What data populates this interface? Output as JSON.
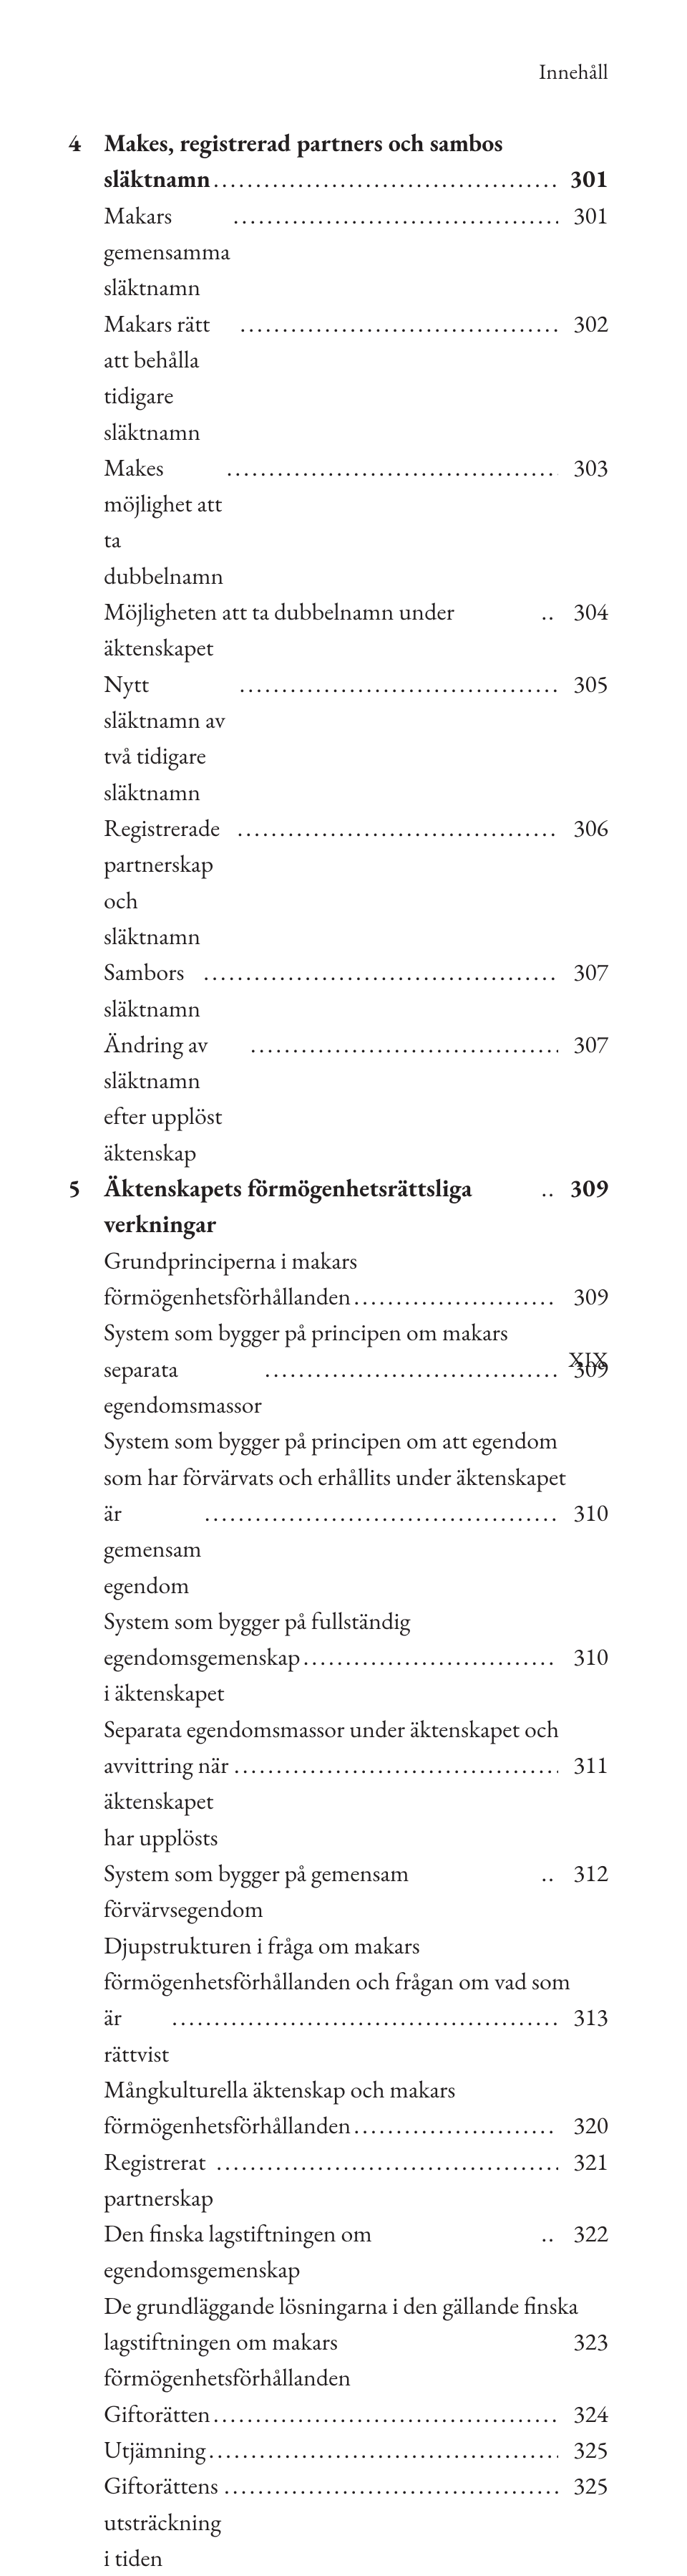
{
  "running_head": "Innehåll",
  "folio": "XIX",
  "entries": [
    {
      "chapter": "4",
      "bold": true,
      "lines": [
        "Makes, registrerad partners och sambos",
        "släktnamn"
      ],
      "page": "301"
    },
    {
      "lines": [
        "Makars gemensamma släktnamn"
      ],
      "page": "301"
    },
    {
      "lines": [
        "Makars rätt att behålla tidigare släktnamn"
      ],
      "page": "302"
    },
    {
      "lines": [
        "Makes möjlighet att ta dubbelnamn"
      ],
      "page": "303"
    },
    {
      "lines": [
        "Möjligheten att ta dubbelnamn under äktenskapet"
      ],
      "leader": "short",
      "page": "304"
    },
    {
      "lines": [
        "Nytt släktnamn av två tidigare släktnamn"
      ],
      "page": "305"
    },
    {
      "lines": [
        "Registrerade partnerskap och släktnamn"
      ],
      "page": "306"
    },
    {
      "lines": [
        "Sambors släktnamn"
      ],
      "page": "307"
    },
    {
      "lines": [
        "Ändring av släktnamn efter upplöst äktenskap"
      ],
      "page": "307"
    },
    {
      "chapter": "5",
      "bold": true,
      "lines": [
        "Äktenskapets förmögenhetsrättsliga verkningar"
      ],
      "leader": "short",
      "page": "309"
    },
    {
      "lines": [
        "Grundprinciperna i makars",
        "förmögenhetsförhållanden"
      ],
      "page": "309"
    },
    {
      "lines": [
        "System som bygger på principen om makars",
        "separata egendomsmassor"
      ],
      "page": "309"
    },
    {
      "lines": [
        "System som bygger på principen om att egendom",
        "som har förvärvats och erhållits under äktenskapet",
        "är gemensam egendom"
      ],
      "page": "310"
    },
    {
      "lines": [
        "System som bygger på fullständig",
        "egendomsgemenskap i äktenskapet"
      ],
      "page": "310"
    },
    {
      "lines": [
        "Separata egendomsmassor under äktenskapet och",
        "avvittring när äktenskapet har upplösts"
      ],
      "page": "311"
    },
    {
      "lines": [
        "System som bygger på gemensam förvärvsegendom"
      ],
      "leader": "short",
      "page": "312"
    },
    {
      "lines": [
        "Djupstrukturen i fråga om makars",
        "förmögenhetsförhållanden och frågan om vad som",
        "är rättvist"
      ],
      "page": "313"
    },
    {
      "lines": [
        "Mångkulturella äktenskap och makars",
        "förmögenhetsförhållanden"
      ],
      "page": "320"
    },
    {
      "lines": [
        "Registrerat partnerskap"
      ],
      "page": "321"
    },
    {
      "lines": [
        "Den finska lagstiftningen om egendomsgemenskap"
      ],
      "leader": "short",
      "page": "322"
    },
    {
      "lines": [
        "De grundläggande lösningarna i den gällande finska",
        "lagstiftningen om makars förmögenhetsförhållanden"
      ],
      "leader": "none",
      "page": "323"
    },
    {
      "lines": [
        "Giftorätten"
      ],
      "page": "324"
    },
    {
      "lines": [
        "Utjämning"
      ],
      "page": "325"
    },
    {
      "lines": [
        "Giftorättens utsträckning i tiden"
      ],
      "page": "325"
    }
  ]
}
